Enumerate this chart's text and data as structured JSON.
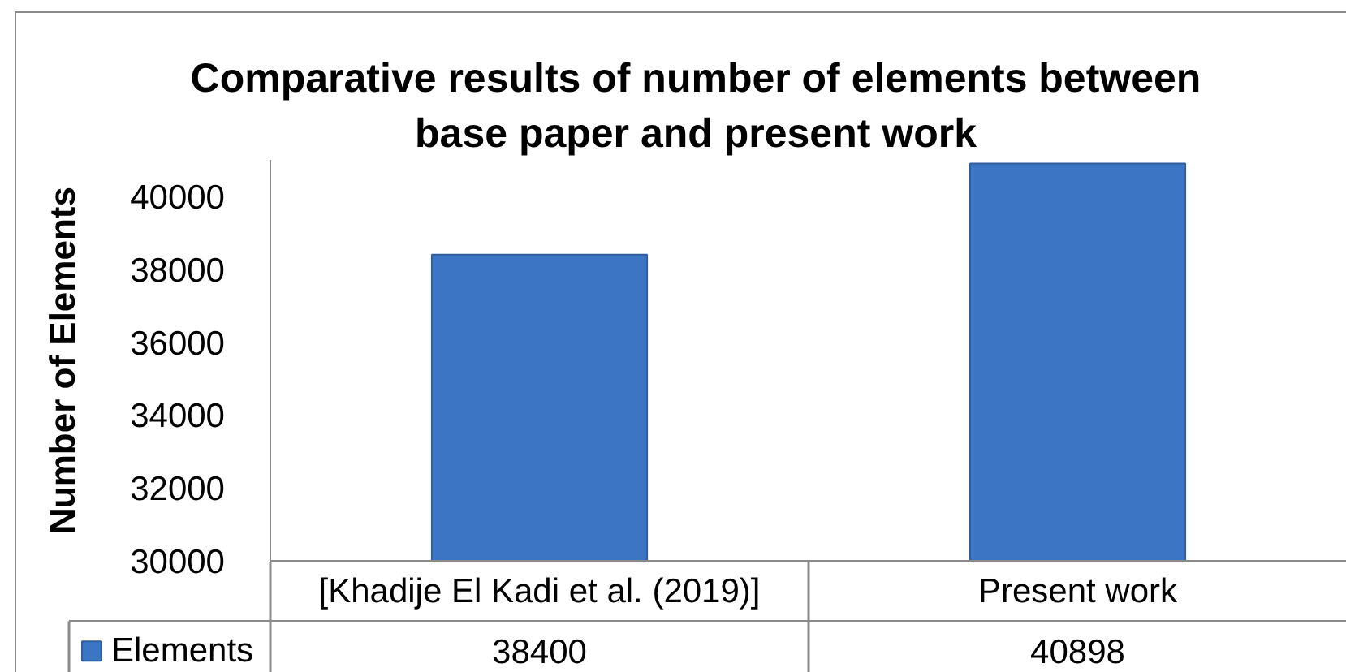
{
  "chart_data": {
    "type": "bar",
    "title": "Comparative results of number of elements between base paper and present work",
    "ylabel": "Number of Elements",
    "categories": [
      "[Khadije El Kadi et al. (2019)]",
      "Present work"
    ],
    "series": [
      {
        "name": "Elements",
        "color": "#3b75c4",
        "values": [
          38400,
          40898
        ]
      }
    ],
    "ylim": [
      30000,
      41000
    ],
    "yticks": [
      30000,
      32000,
      34000,
      36000,
      38000,
      40000
    ],
    "data_labels": true,
    "legend": "bottom left"
  }
}
